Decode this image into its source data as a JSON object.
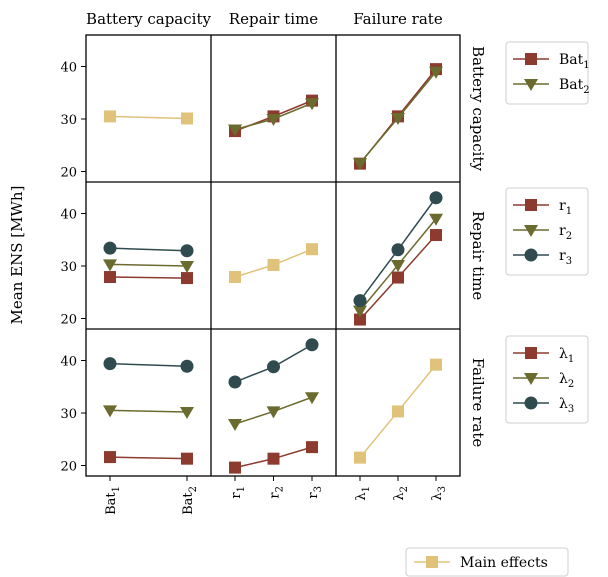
{
  "chart_data": {
    "type": "line",
    "title": "",
    "ylabel": "Mean ENS [MWh]",
    "ylim": [
      18,
      46
    ],
    "yticks": [
      20,
      30,
      40
    ],
    "grid": false,
    "factors": [
      {
        "key": "bat",
        "title": "Battery capacity",
        "levels": [
          "Bat1",
          "Bat2"
        ],
        "level_base": [
          "Bat",
          "Bat"
        ],
        "level_sub": [
          "1",
          "2"
        ],
        "legend": "legend-top"
      },
      {
        "key": "rep",
        "title": "Repair time",
        "levels": [
          "r1",
          "r2",
          "r3"
        ],
        "level_base": [
          "r",
          "r",
          "r"
        ],
        "level_sub": [
          "1",
          "2",
          "3"
        ],
        "legend": "legend-middle"
      },
      {
        "key": "fail",
        "title": "Failure rate",
        "levels": [
          "λ1",
          "λ2",
          "λ3"
        ],
        "level_base": [
          "λ",
          "λ",
          "λ"
        ],
        "level_sub": [
          "1",
          "2",
          "3"
        ],
        "legend": "legend-lower"
      }
    ],
    "colors": {
      "level1": "#8c3b2e",
      "level2": "#6b6b2f",
      "level3": "#2f4b4f",
      "main": "#e0c27a"
    },
    "markers": {
      "level1": "square",
      "level2": "triangle-down",
      "level3": "circle",
      "main": "square"
    },
    "main_effects": {
      "label": "Main effects",
      "bat": [
        30.5,
        30.1
      ],
      "rep": [
        27.9,
        30.2,
        33.2
      ],
      "fail": [
        21.5,
        30.3,
        39.2
      ]
    },
    "interactions": [
      {
        "row": "bat",
        "col": "rep",
        "series": [
          {
            "level": 0,
            "values": [
              27.7,
              30.5,
              33.5
            ]
          },
          {
            "level": 1,
            "values": [
              28.0,
              30.0,
              33.0
            ]
          }
        ]
      },
      {
        "row": "bat",
        "col": "fail",
        "series": [
          {
            "level": 0,
            "values": [
              21.5,
              30.5,
              39.5
            ]
          },
          {
            "level": 1,
            "values": [
              21.6,
              30.2,
              39.0
            ]
          }
        ]
      },
      {
        "row": "rep",
        "col": "bat",
        "series": [
          {
            "level": 0,
            "values": [
              27.9,
              27.7
            ]
          },
          {
            "level": 1,
            "values": [
              30.3,
              30.0
            ]
          },
          {
            "level": 2,
            "values": [
              33.4,
              32.9
            ]
          }
        ]
      },
      {
        "row": "rep",
        "col": "fail",
        "series": [
          {
            "level": 0,
            "values": [
              19.8,
              27.8,
              35.9
            ]
          },
          {
            "level": 1,
            "values": [
              21.5,
              30.2,
              39.0
            ]
          },
          {
            "level": 2,
            "values": [
              23.4,
              33.1,
              43.0
            ]
          }
        ]
      },
      {
        "row": "fail",
        "col": "bat",
        "series": [
          {
            "level": 0,
            "values": [
              21.6,
              21.3
            ]
          },
          {
            "level": 1,
            "values": [
              30.5,
              30.2
            ]
          },
          {
            "level": 2,
            "values": [
              39.4,
              38.9
            ]
          }
        ]
      },
      {
        "row": "fail",
        "col": "rep",
        "series": [
          {
            "level": 0,
            "values": [
              19.6,
              21.3,
              23.5
            ]
          },
          {
            "level": 1,
            "values": [
              27.9,
              30.3,
              33.0
            ]
          },
          {
            "level": 2,
            "values": [
              35.9,
              38.8,
              43.0
            ]
          }
        ]
      }
    ]
  }
}
